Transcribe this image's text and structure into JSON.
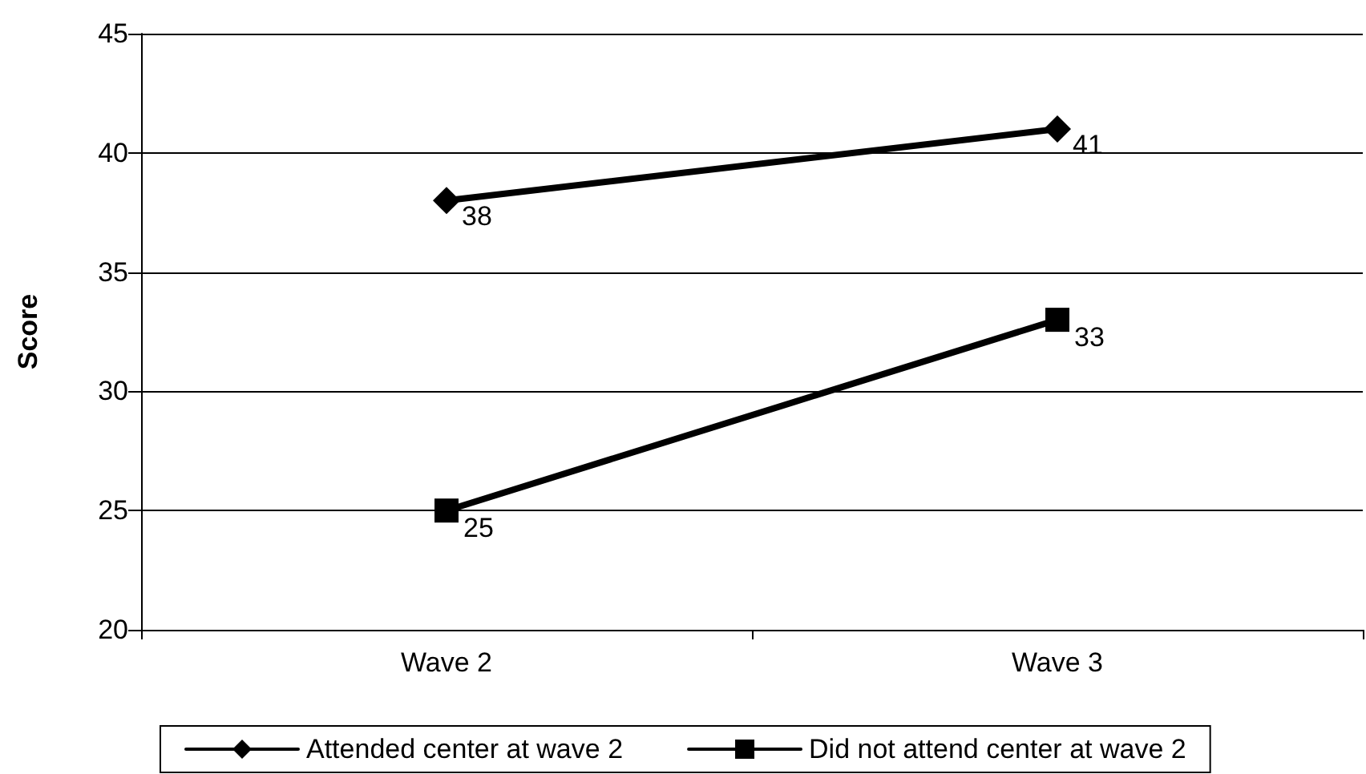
{
  "chart_data": {
    "type": "line",
    "ylabel": "Score",
    "categories": [
      "Wave 2",
      "Wave 3"
    ],
    "series": [
      {
        "name": "Attended center at wave 2",
        "color": "#000000",
        "marker": "diamond",
        "values": [
          38,
          41
        ]
      },
      {
        "name": "Did not attend center at wave 2",
        "color": "#000000",
        "marker": "square",
        "values": [
          25,
          33
        ]
      }
    ],
    "ylim": [
      20,
      45
    ],
    "yticks": [
      20,
      25,
      30,
      35,
      40,
      45
    ],
    "grid": "y",
    "legend": "bottom",
    "data_labels": true,
    "line_style": "solid"
  }
}
